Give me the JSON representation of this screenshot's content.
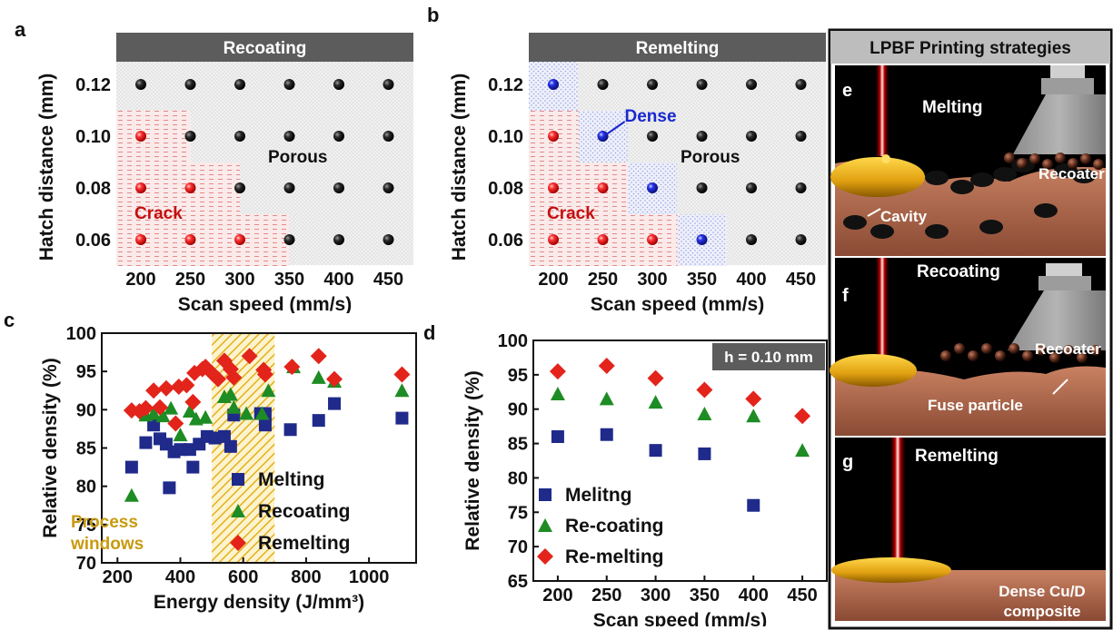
{
  "panels": {
    "a": "a",
    "b": "b",
    "c": "c",
    "d": "d",
    "e": "e",
    "f": "f",
    "g": "g"
  },
  "chart_data": [
    {
      "id": "a",
      "type": "scatter",
      "title": "Recoating",
      "xlabel": "Scan speed (mm/s)",
      "ylabel": "Hatch distance (mm)",
      "x_ticks": [
        "200",
        "250",
        "300",
        "350",
        "400",
        "450"
      ],
      "y_ticks": [
        "0.12",
        "0.10",
        "0.08",
        "0.06"
      ],
      "regions": [
        {
          "label": "Crack"
        },
        {
          "label": "Porous"
        }
      ],
      "points": [
        {
          "x": 200,
          "y": 0.12,
          "class": "porous"
        },
        {
          "x": 250,
          "y": 0.12,
          "class": "porous"
        },
        {
          "x": 300,
          "y": 0.12,
          "class": "porous"
        },
        {
          "x": 350,
          "y": 0.12,
          "class": "porous"
        },
        {
          "x": 400,
          "y": 0.12,
          "class": "porous"
        },
        {
          "x": 450,
          "y": 0.12,
          "class": "porous"
        },
        {
          "x": 200,
          "y": 0.1,
          "class": "crack"
        },
        {
          "x": 250,
          "y": 0.1,
          "class": "porous"
        },
        {
          "x": 300,
          "y": 0.1,
          "class": "porous"
        },
        {
          "x": 350,
          "y": 0.1,
          "class": "porous"
        },
        {
          "x": 400,
          "y": 0.1,
          "class": "porous"
        },
        {
          "x": 450,
          "y": 0.1,
          "class": "porous"
        },
        {
          "x": 200,
          "y": 0.08,
          "class": "crack"
        },
        {
          "x": 250,
          "y": 0.08,
          "class": "crack"
        },
        {
          "x": 300,
          "y": 0.08,
          "class": "porous"
        },
        {
          "x": 350,
          "y": 0.08,
          "class": "porous"
        },
        {
          "x": 400,
          "y": 0.08,
          "class": "porous"
        },
        {
          "x": 450,
          "y": 0.08,
          "class": "porous"
        },
        {
          "x": 200,
          "y": 0.06,
          "class": "crack"
        },
        {
          "x": 250,
          "y": 0.06,
          "class": "crack"
        },
        {
          "x": 300,
          "y": 0.06,
          "class": "crack"
        },
        {
          "x": 350,
          "y": 0.06,
          "class": "porous"
        },
        {
          "x": 400,
          "y": 0.06,
          "class": "porous"
        },
        {
          "x": 450,
          "y": 0.06,
          "class": "porous"
        }
      ]
    },
    {
      "id": "b",
      "type": "scatter",
      "title": "Remelting",
      "xlabel": "Scan speed (mm/s)",
      "ylabel": "Hatch distance (mm)",
      "x_ticks": [
        "200",
        "250",
        "300",
        "350",
        "400",
        "450"
      ],
      "y_ticks": [
        "0.12",
        "0.10",
        "0.08",
        "0.06"
      ],
      "regions": [
        {
          "label": "Crack"
        },
        {
          "label": "Dense"
        },
        {
          "label": "Porous"
        }
      ],
      "points": [
        {
          "x": 200,
          "y": 0.12,
          "class": "dense"
        },
        {
          "x": 250,
          "y": 0.12,
          "class": "porous"
        },
        {
          "x": 300,
          "y": 0.12,
          "class": "porous"
        },
        {
          "x": 350,
          "y": 0.12,
          "class": "porous"
        },
        {
          "x": 400,
          "y": 0.12,
          "class": "porous"
        },
        {
          "x": 450,
          "y": 0.12,
          "class": "porous"
        },
        {
          "x": 200,
          "y": 0.1,
          "class": "crack"
        },
        {
          "x": 250,
          "y": 0.1,
          "class": "dense"
        },
        {
          "x": 300,
          "y": 0.1,
          "class": "porous"
        },
        {
          "x": 350,
          "y": 0.1,
          "class": "porous"
        },
        {
          "x": 400,
          "y": 0.1,
          "class": "porous"
        },
        {
          "x": 450,
          "y": 0.1,
          "class": "porous"
        },
        {
          "x": 200,
          "y": 0.08,
          "class": "crack"
        },
        {
          "x": 250,
          "y": 0.08,
          "class": "crack"
        },
        {
          "x": 300,
          "y": 0.08,
          "class": "dense"
        },
        {
          "x": 350,
          "y": 0.08,
          "class": "porous"
        },
        {
          "x": 400,
          "y": 0.08,
          "class": "porous"
        },
        {
          "x": 450,
          "y": 0.08,
          "class": "porous"
        },
        {
          "x": 200,
          "y": 0.06,
          "class": "crack"
        },
        {
          "x": 250,
          "y": 0.06,
          "class": "crack"
        },
        {
          "x": 300,
          "y": 0.06,
          "class": "crack"
        },
        {
          "x": 350,
          "y": 0.06,
          "class": "dense"
        },
        {
          "x": 400,
          "y": 0.06,
          "class": "porous"
        },
        {
          "x": 450,
          "y": 0.06,
          "class": "porous"
        }
      ]
    },
    {
      "id": "c",
      "type": "scatter",
      "xlabel": "Energy density (J/mm³)",
      "ylabel": "Relative density (%)",
      "xlim": [
        150,
        1150
      ],
      "ylim": [
        70,
        100
      ],
      "x_ticks": [
        200,
        400,
        600,
        800,
        1000
      ],
      "y_ticks": [
        70,
        75,
        80,
        85,
        90,
        95,
        100
      ],
      "shaded_region": {
        "label": "Process windows",
        "x_range": [
          500,
          700
        ]
      },
      "series": [
        {
          "name": "Melting",
          "marker": "square",
          "color": "#1f2a8a",
          "points": [
            [
              245,
              82.5
            ],
            [
              290,
              85.7
            ],
            [
              315,
              88
            ],
            [
              335,
              86.2
            ],
            [
              355,
              85.5
            ],
            [
              365,
              79.8
            ],
            [
              380,
              84.5
            ],
            [
              400,
              84.8
            ],
            [
              430,
              84.8
            ],
            [
              440,
              82.5
            ],
            [
              460,
              85.5
            ],
            [
              485,
              86.5
            ],
            [
              510,
              86.3
            ],
            [
              540,
              86.5
            ],
            [
              560,
              85.2
            ],
            [
              570,
              89.3
            ],
            [
              655,
              89.5
            ],
            [
              670,
              89.5
            ],
            [
              670,
              88
            ],
            [
              750,
              87.4
            ],
            [
              840,
              88.6
            ],
            [
              890,
              90.8
            ],
            [
              1105,
              88.9
            ]
          ]
        },
        {
          "name": "Recoating",
          "marker": "triangle",
          "color": "#1e8c24",
          "points": [
            [
              245,
              78.8
            ],
            [
              290,
              89.3
            ],
            [
              315,
              89.5
            ],
            [
              345,
              89.2
            ],
            [
              370,
              90.2
            ],
            [
              400,
              86.7
            ],
            [
              430,
              89.8
            ],
            [
              450,
              88.8
            ],
            [
              480,
              89
            ],
            [
              540,
              91.7
            ],
            [
              560,
              92
            ],
            [
              570,
              90.3
            ],
            [
              610,
              89.5
            ],
            [
              660,
              89.5
            ],
            [
              680,
              92.5
            ],
            [
              760,
              95.6
            ],
            [
              840,
              94.2
            ],
            [
              890,
              93.7
            ],
            [
              1105,
              92.5
            ]
          ]
        },
        {
          "name": "Remelting",
          "marker": "diamond",
          "color": "#e3241b",
          "points": [
            [
              245,
              89.9
            ],
            [
              270,
              89.8
            ],
            [
              290,
              90.2
            ],
            [
              315,
              92.5
            ],
            [
              335,
              90.3
            ],
            [
              355,
              92.8
            ],
            [
              385,
              88.2
            ],
            [
              395,
              93
            ],
            [
              420,
              93.2
            ],
            [
              440,
              91
            ],
            [
              445,
              94.8
            ],
            [
              470,
              95.3
            ],
            [
              480,
              95.6
            ],
            [
              500,
              94.8
            ],
            [
              520,
              94
            ],
            [
              540,
              96.4
            ],
            [
              560,
              95.3
            ],
            [
              570,
              94.2
            ],
            [
              620,
              97
            ],
            [
              665,
              95.2
            ],
            [
              670,
              94.6
            ],
            [
              755,
              95.6
            ],
            [
              840,
              97
            ],
            [
              890,
              94
            ],
            [
              1105,
              94.6
            ]
          ]
        }
      ]
    },
    {
      "id": "d",
      "type": "scatter",
      "xlabel": "Scan speed (mm/s)",
      "ylabel": "Relative density (%)",
      "xlim": [
        175,
        475
      ],
      "ylim": [
        65,
        100
      ],
      "x_ticks": [
        200,
        250,
        300,
        350,
        400,
        450
      ],
      "y_ticks": [
        65,
        70,
        75,
        80,
        85,
        90,
        95,
        100
      ],
      "annotation": "h = 0.10 mm",
      "series": [
        {
          "name": "Melitng",
          "marker": "square",
          "color": "#1f2a8a",
          "points": [
            [
              200,
              86
            ],
            [
              250,
              86.3
            ],
            [
              300,
              84
            ],
            [
              350,
              83.5
            ],
            [
              400,
              76
            ]
          ]
        },
        {
          "name": "Re-coating",
          "marker": "triangle",
          "color": "#1e8c24",
          "points": [
            [
              200,
              92.2
            ],
            [
              250,
              91.5
            ],
            [
              300,
              91
            ],
            [
              350,
              89.3
            ],
            [
              400,
              89
            ],
            [
              450,
              84
            ]
          ]
        },
        {
          "name": "Re-melting",
          "marker": "diamond",
          "color": "#e3241b",
          "points": [
            [
              200,
              95.5
            ],
            [
              250,
              96.3
            ],
            [
              300,
              94.5
            ],
            [
              350,
              92.8
            ],
            [
              400,
              91.5
            ],
            [
              450,
              89
            ]
          ]
        }
      ]
    }
  ],
  "illustration": {
    "title": "LPBF Printing strategies",
    "e": {
      "label": "Melting",
      "recoater": "Recoater",
      "cavity": "Cavity"
    },
    "f": {
      "label": "Recoating",
      "recoater": "Recoater",
      "fuse": "Fuse particle"
    },
    "g": {
      "label": "Remelting",
      "composite_line1": "Dense Cu/D",
      "composite_line2": "composite"
    }
  }
}
